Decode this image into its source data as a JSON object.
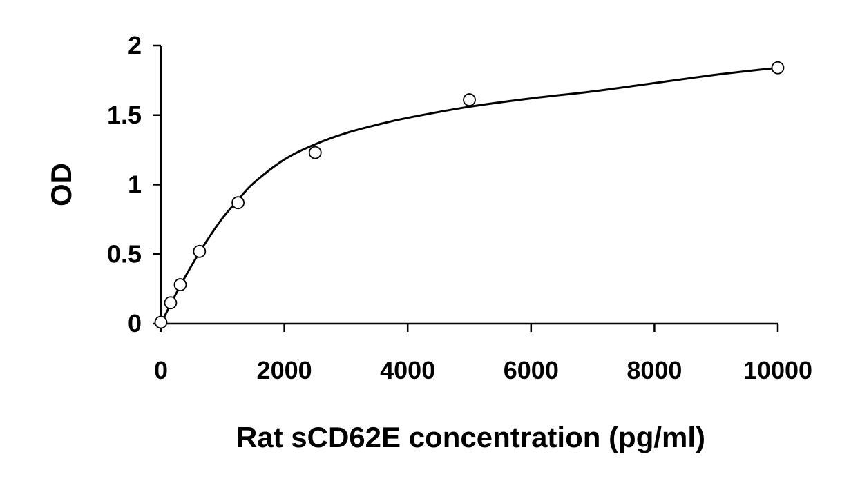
{
  "chart_data": {
    "type": "scatter",
    "title": "",
    "xlabel": "Rat sCD62E concentration (pg/ml)",
    "ylabel": "OD",
    "xlim": [
      0,
      10000
    ],
    "ylim": [
      0,
      2
    ],
    "xticks": [
      0,
      2000,
      4000,
      6000,
      8000,
      10000
    ],
    "yticks": [
      0,
      0.5,
      1,
      1.5,
      2
    ],
    "xtick_labels": [
      "0",
      "2000",
      "4000",
      "6000",
      "8000",
      "10000"
    ],
    "ytick_labels": [
      "0",
      "0.5",
      "1",
      "1.5",
      "2"
    ],
    "grid": false,
    "legend": "none",
    "series": [
      {
        "points": [
          {
            "x": 0,
            "y": 0.01
          },
          {
            "x": 156,
            "y": 0.15
          },
          {
            "x": 313,
            "y": 0.28
          },
          {
            "x": 625,
            "y": 0.52
          },
          {
            "x": 1250,
            "y": 0.87
          },
          {
            "x": 2500,
            "y": 1.23
          },
          {
            "x": 5000,
            "y": 1.61
          },
          {
            "x": 10000,
            "y": 1.84
          }
        ],
        "marker": "open-circle",
        "color": "#000000"
      }
    ],
    "fit_curve": {
      "style": "smooth-line",
      "color": "#000000",
      "points": [
        {
          "x": 0,
          "y": 0.0
        },
        {
          "x": 250,
          "y": 0.22
        },
        {
          "x": 500,
          "y": 0.42
        },
        {
          "x": 750,
          "y": 0.6
        },
        {
          "x": 1000,
          "y": 0.76
        },
        {
          "x": 1250,
          "y": 0.89
        },
        {
          "x": 1500,
          "y": 1.01
        },
        {
          "x": 2000,
          "y": 1.18
        },
        {
          "x": 2500,
          "y": 1.29
        },
        {
          "x": 3000,
          "y": 1.37
        },
        {
          "x": 3500,
          "y": 1.43
        },
        {
          "x": 4000,
          "y": 1.48
        },
        {
          "x": 5000,
          "y": 1.56
        },
        {
          "x": 6000,
          "y": 1.62
        },
        {
          "x": 7000,
          "y": 1.67
        },
        {
          "x": 8000,
          "y": 1.73
        },
        {
          "x": 9000,
          "y": 1.79
        },
        {
          "x": 10000,
          "y": 1.84
        }
      ]
    }
  }
}
